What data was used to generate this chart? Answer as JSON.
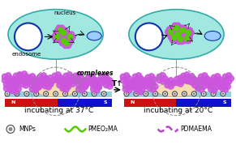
{
  "bg_color": "#ffffff",
  "cell_bg": "#a0e8e0",
  "title_left": "incubating at 37°C",
  "title_right": "incubating at 20°C",
  "label_endosome": "endosome",
  "label_nucleus": "nucleus",
  "label_complexes": "complexes",
  "label_T": "T↑",
  "legend_mnp": "MNPs",
  "legend_pmeo": "PMEO₂MA",
  "legend_pdma": "PDMAEMA",
  "magnet_red": "#cc1111",
  "magnet_blue": "#1111cc",
  "nucleus_color": "#1133aa",
  "substrate_color": "#88ccdd",
  "cell_bed_color": "#f5ddb0",
  "green_color": "#55cc00",
  "purple_color": "#bb44cc",
  "purple_dark": "#8833aa",
  "font_size_label": 6.5,
  "font_size_small": 5.0,
  "font_size_legend": 5.5
}
